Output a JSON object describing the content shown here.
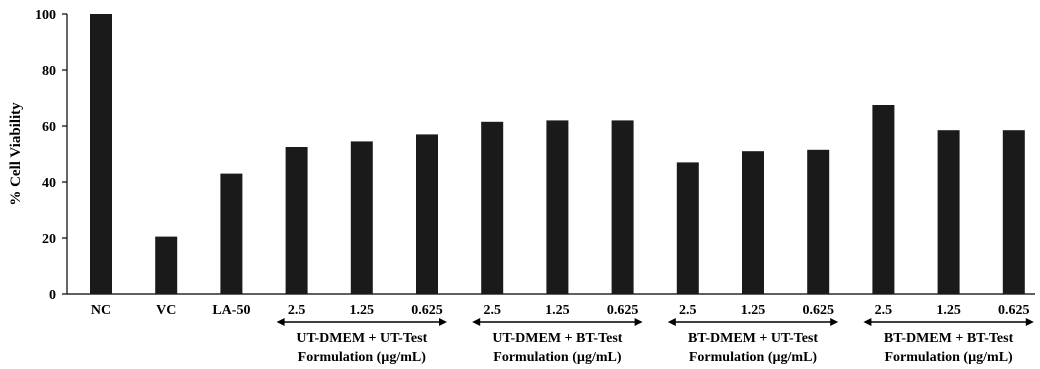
{
  "chart_data": {
    "type": "bar",
    "ylabel": "% Cell Viability",
    "ylim": [
      0,
      100
    ],
    "yticks": [
      0,
      20,
      40,
      60,
      80,
      100
    ],
    "grid": false,
    "bar_color": "#1a1a1a",
    "categories": [
      "NC",
      "VC",
      "LA-50",
      "2.5",
      "1.25",
      "0.625",
      "2.5",
      "1.25",
      "0.625",
      "2.5",
      "1.25",
      "0.625",
      "2.5",
      "1.25",
      "0.625"
    ],
    "values": [
      100,
      20.5,
      43,
      52.5,
      54.5,
      57,
      61.5,
      62,
      62,
      47,
      51,
      51.5,
      67.5,
      58.5,
      58.5
    ],
    "groups": [
      {
        "line1": "UT-DMEM + UT-Test",
        "line2": "Formulation (µg/mL)",
        "start": 3,
        "end": 5
      },
      {
        "line1": "UT-DMEM + BT-Test",
        "line2": "Formulation (µg/mL)",
        "start": 6,
        "end": 8
      },
      {
        "line1": "BT-DMEM + UT-Test",
        "line2": "Formulation (µg/mL)",
        "start": 9,
        "end": 11
      },
      {
        "line1": "BT-DMEM + BT-Test",
        "line2": "Formulation (µg/mL)",
        "start": 12,
        "end": 14
      }
    ]
  }
}
